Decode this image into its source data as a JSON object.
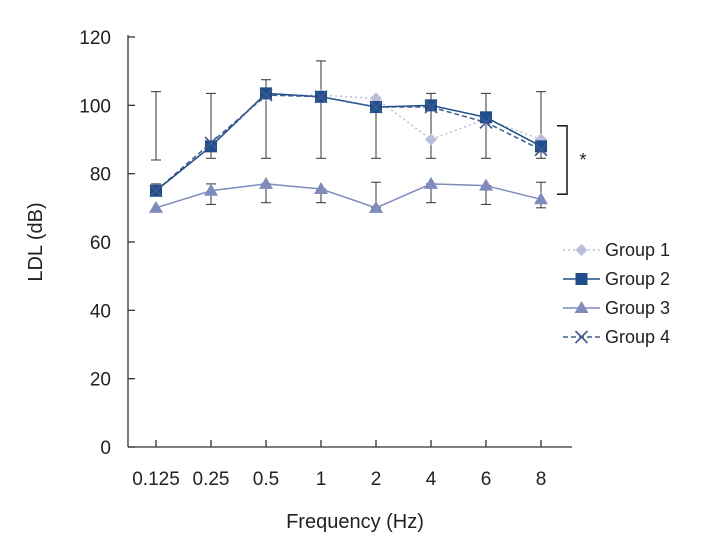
{
  "chart_data": {
    "type": "line",
    "title": "",
    "xlabel": "Frequency (Hz)",
    "ylabel": "LDL (dB)",
    "categories": [
      "0.125",
      "0.25",
      "0.5",
      "1",
      "2",
      "4",
      "6",
      "8"
    ],
    "ylim": [
      0,
      120
    ],
    "yticks": [
      0,
      20,
      40,
      60,
      80,
      100,
      120
    ],
    "grid": false,
    "legend_position": "right",
    "series": [
      {
        "name": "Group 1",
        "values": [
          75,
          88,
          103,
          103,
          102,
          90,
          96,
          90
        ],
        "marker": "diamond",
        "line": "dotted",
        "color": "#b9bedd"
      },
      {
        "name": "Group 2",
        "values": [
          75,
          88,
          103.5,
          102.5,
          99.5,
          100,
          96.5,
          88
        ],
        "marker": "square",
        "line": "solid",
        "color": "#1f4e8c"
      },
      {
        "name": "Group 3",
        "values": [
          70,
          75,
          77,
          75.5,
          70,
          77,
          76.5,
          72.5
        ],
        "marker": "triangle",
        "line": "solid",
        "color": "#7f8bbd"
      },
      {
        "name": "Group 4",
        "values": [
          75,
          89,
          103,
          102.5,
          99.5,
          99.5,
          95,
          87
        ],
        "marker": "x",
        "line": "dashed",
        "color": "#3e5b91"
      }
    ],
    "error_bars": [
      {
        "category": "0.125",
        "low": 84,
        "high": 104
      },
      {
        "category": "0.125",
        "low": 75,
        "high": 77
      },
      {
        "category": "0.25",
        "low": 84.5,
        "high": 103.5
      },
      {
        "category": "0.25",
        "low": 71,
        "high": 77
      },
      {
        "category": "0.5",
        "low": 84.5,
        "high": 107.5
      },
      {
        "category": "0.5",
        "low": 71.5,
        "high": 77
      },
      {
        "category": "1",
        "low": 84.5,
        "high": 113
      },
      {
        "category": "1",
        "low": 71.5,
        "high": 75.5
      },
      {
        "category": "2",
        "low": 84.5,
        "high": 102
      },
      {
        "category": "2",
        "low": 70,
        "high": 77.5
      },
      {
        "category": "4",
        "low": 84.5,
        "high": 103.5
      },
      {
        "category": "4",
        "low": 71.5,
        "high": 77
      },
      {
        "category": "6",
        "low": 84.5,
        "high": 103.5
      },
      {
        "category": "6",
        "low": 71,
        "high": 76.5
      },
      {
        "category": "8",
        "low": 84.5,
        "high": 104
      },
      {
        "category": "8",
        "low": 70,
        "high": 77.5
      }
    ],
    "significance": {
      "label": "*",
      "y_low": 74,
      "y_high": 94
    }
  }
}
